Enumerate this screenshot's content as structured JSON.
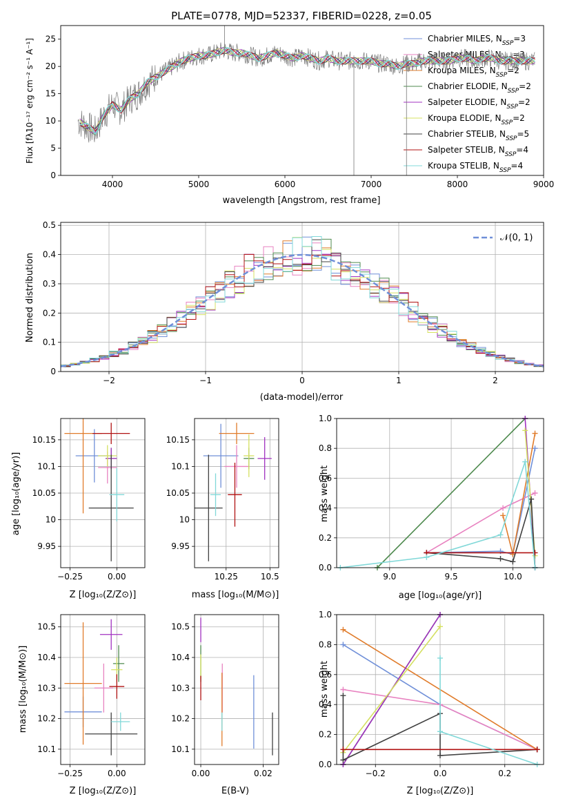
{
  "colors": [
    "#6f8fd8",
    "#e882c0",
    "#e07b2a",
    "#4e8a4e",
    "#a030c0",
    "#d4e060",
    "#404040",
    "#b01010",
    "#80d8d8"
  ],
  "chart_data": [
    {
      "id": "spectrum",
      "type": "line",
      "title": "PLATE=0778, MJD=52337, FIBERID=0228, z=0.05",
      "xlabel": "wavelength [Angstrom, rest frame]",
      "ylabel": "Flux [fλ10⁻¹⁷ erg cm⁻² s⁻¹ A⁻¹]",
      "xlim": [
        3400,
        9000
      ],
      "ylim": [
        0,
        27.5
      ],
      "xticks": [
        4000,
        5000,
        6000,
        7000,
        8000,
        9000
      ],
      "yticks": [
        0,
        5,
        10,
        15,
        20,
        25
      ],
      "grid": false,
      "legend_position": "top-right",
      "legend": [
        "Chabrier MILES, N_SSP=3",
        "Salpeter MILES, N_SSP=3",
        "Kroupa MILES, N_SSP=2",
        "Chabrier ELODIE, N_SSP=2",
        "Salpeter ELODIE, N_SSP=2",
        "Kroupa ELODIE, N_SSP=2",
        "Chabrier STELIB, N_SSP=5",
        "Salpeter STELIB, N_SSP=4",
        "Kroupa STELIB, N_SSP=4"
      ],
      "data_x": [
        3600,
        3700,
        3800,
        3900,
        4000,
        4100,
        4200,
        4300,
        4400,
        4500,
        4600,
        4700,
        4800,
        4900,
        5000,
        5100,
        5200,
        5300,
        5400,
        5500,
        5600,
        5700,
        5800,
        5900,
        6000,
        6100,
        6200,
        6300,
        6400,
        6500,
        6600,
        6700,
        6800,
        6900,
        7000,
        7100,
        7200,
        7300,
        7400,
        7500,
        7600,
        7700,
        7800,
        7900,
        8000,
        8100,
        8200,
        8300,
        8400,
        8500,
        8600,
        8700,
        8800,
        8900
      ],
      "data_y": [
        10,
        9,
        8,
        11,
        13,
        12,
        14,
        15,
        17,
        18,
        19,
        20,
        21,
        21.5,
        22,
        22,
        22.5,
        23,
        22.5,
        22.5,
        22,
        21.5,
        22,
        22.5,
        22,
        21.5,
        22,
        21.5,
        21,
        21.5,
        21,
        21,
        21,
        21,
        21,
        20.5,
        20.5,
        20,
        20.5,
        20.5,
        21,
        21,
        21,
        21,
        21.5,
        21.5,
        21,
        21.5,
        21.5,
        21,
        21,
        21,
        21,
        21
      ]
    },
    {
      "id": "residuals",
      "type": "bar",
      "xlabel": "(data-model)/error",
      "ylabel": "Normed distribution",
      "xlim": [
        -2.5,
        2.5
      ],
      "ylim": [
        0,
        0.51
      ],
      "xticks": [
        -2,
        -1,
        0,
        1,
        2
      ],
      "yticks": [
        0.0,
        0.1,
        0.2,
        0.3,
        0.4,
        0.5
      ],
      "grid": true,
      "legend_position": "top-right",
      "legend": [
        "𝒩(0, 1)"
      ]
    },
    {
      "id": "age-vs-Z",
      "type": "scatter",
      "xlabel": "Z [log₁₀(Z/Z⊙)]",
      "ylabel": "age  [log₁₀(age/yr)]",
      "xlim": [
        -0.3,
        0.15
      ],
      "ylim": [
        9.91,
        10.19
      ],
      "xticks": [
        -0.25,
        0.0
      ],
      "yticks": [
        9.95,
        10.0,
        10.05,
        10.1,
        10.15
      ],
      "grid": true,
      "points": [
        {
          "x": -0.12,
          "y": 10.12,
          "xerr": 0.1,
          "yerr": 0.05
        },
        {
          "x": -0.05,
          "y": 10.098,
          "xerr": 0.05,
          "yerr": 0.03
        },
        {
          "x": -0.18,
          "y": 10.162,
          "xerr": 0.1,
          "yerr": 0.15
        },
        {
          "x": -0.03,
          "y": 10.115,
          "xerr": 0.03,
          "yerr": 0.02
        },
        {
          "x": -0.03,
          "y": 10.115,
          "xerr": 0.03,
          "yerr": 0.02
        },
        {
          "x": -0.05,
          "y": 10.12,
          "xerr": 0.05,
          "yerr": 0.02
        },
        {
          "x": -0.03,
          "y": 10.022,
          "xerr": 0.12,
          "yerr": 0.1
        },
        {
          "x": -0.03,
          "y": 10.162,
          "xerr": 0.1,
          "yerr": 0.02
        },
        {
          "x": 0.0,
          "y": 10.047,
          "xerr": 0.04,
          "yerr": 0.05
        }
      ]
    },
    {
      "id": "age-vs-mass",
      "type": "scatter",
      "xlabel": "mass [log₁₀(M/M⊙)]",
      "ylabel": "",
      "xlim": [
        10.07,
        10.55
      ],
      "ylim": [
        9.91,
        10.19
      ],
      "xticks": [
        10.25,
        10.5
      ],
      "yticks": [
        9.95,
        10.0,
        10.05,
        10.1,
        10.15
      ],
      "grid": true,
      "points": [
        {
          "x": 10.22,
          "y": 10.12,
          "xerr": 0.1,
          "yerr": 0.06
        },
        {
          "x": 10.31,
          "y": 10.1,
          "xerr": 0.07,
          "yerr": 0.04
        },
        {
          "x": 10.31,
          "y": 10.162,
          "xerr": 0.1,
          "yerr": 0.02
        },
        {
          "x": 10.38,
          "y": 10.115,
          "xerr": 0.03,
          "yerr": 0.02
        },
        {
          "x": 10.47,
          "y": 10.115,
          "xerr": 0.04,
          "yerr": 0.04
        },
        {
          "x": 10.38,
          "y": 10.12,
          "xerr": 0.03,
          "yerr": 0.04
        },
        {
          "x": 10.15,
          "y": 10.022,
          "xerr": 0.08,
          "yerr": 0.1
        },
        {
          "x": 10.3,
          "y": 10.047,
          "xerr": 0.04,
          "yerr": 0.06
        },
        {
          "x": 10.19,
          "y": 10.047,
          "xerr": 0.03,
          "yerr": 0.04
        }
      ]
    },
    {
      "id": "weight-vs-age",
      "type": "line",
      "xlabel": "age  [log₁₀(age/yr)]",
      "ylabel": "mass weight",
      "xlim": [
        8.57,
        10.25
      ],
      "ylim": [
        0.0,
        1.0
      ],
      "xticks": [
        9.0,
        9.5,
        10.0
      ],
      "yticks": [
        0.0,
        0.2,
        0.4,
        0.6,
        0.8,
        1.0
      ],
      "grid": true,
      "series": [
        {
          "x": [
            9.3,
            9.9,
            10.0,
            10.18
          ],
          "y": [
            0.1,
            0.11,
            0.09,
            0.8
          ]
        },
        {
          "x": [
            9.3,
            9.92,
            10.18
          ],
          "y": [
            0.1,
            0.4,
            0.5
          ]
        },
        {
          "x": [
            9.92,
            10.0,
            10.18
          ],
          "y": [
            0.35,
            0.09,
            0.9
          ]
        },
        {
          "x": [
            8.9,
            10.1
          ],
          "y": [
            0.0,
            1.0
          ]
        },
        {
          "x": [
            10.1,
            10.18
          ],
          "y": [
            1.0,
            0.0
          ]
        },
        {
          "x": [
            10.1,
            10.18
          ],
          "y": [
            0.92,
            0.08
          ]
        },
        {
          "x": [
            9.3,
            9.9,
            10.0,
            10.15,
            10.18
          ],
          "y": [
            0.1,
            0.06,
            0.04,
            0.46,
            0.0
          ]
        },
        {
          "x": [
            9.3,
            10.18
          ],
          "y": [
            0.1,
            0.1
          ]
        },
        {
          "x": [
            8.6,
            9.3,
            9.9,
            10.1,
            10.18
          ],
          "y": [
            0.0,
            0.07,
            0.22,
            0.71,
            0.0
          ]
        }
      ]
    },
    {
      "id": "mass-vs-Z",
      "type": "scatter",
      "xlabel": "Z [log₁₀(Z/Z⊙)]",
      "ylabel": "mass [log₁₀(M/M⊙)]",
      "xlim": [
        -0.3,
        0.15
      ],
      "ylim": [
        10.05,
        10.54
      ],
      "xticks": [
        -0.25,
        0.0
      ],
      "yticks": [
        10.1,
        10.2,
        10.3,
        10.4,
        10.5
      ],
      "grid": true,
      "points": [
        {
          "x": -0.18,
          "y": 10.222,
          "xerr": 0.1,
          "yerr": 0.05
        },
        {
          "x": -0.07,
          "y": 10.3,
          "xerr": 0.05,
          "yerr": 0.08
        },
        {
          "x": -0.18,
          "y": 10.315,
          "xerr": 0.1,
          "yerr": 0.2
        },
        {
          "x": 0.01,
          "y": 10.38,
          "xerr": 0.03,
          "yerr": 0.06
        },
        {
          "x": -0.03,
          "y": 10.475,
          "xerr": 0.06,
          "yerr": 0.05
        },
        {
          "x": 0.0,
          "y": 10.36,
          "xerr": 0.03,
          "yerr": 0.04
        },
        {
          "x": -0.03,
          "y": 10.15,
          "xerr": 0.14,
          "yerr": 0.07
        },
        {
          "x": 0.0,
          "y": 10.305,
          "xerr": 0.04,
          "yerr": 0.04
        },
        {
          "x": 0.02,
          "y": 10.19,
          "xerr": 0.05,
          "yerr": 0.03
        }
      ]
    },
    {
      "id": "mass-vs-ebv",
      "type": "scatter",
      "xlabel": "E(B-V)",
      "ylabel": "",
      "xlim": [
        -0.002,
        0.025
      ],
      "ylim": [
        10.05,
        10.54
      ],
      "xticks": [
        0.0,
        0.02
      ],
      "yticks": [
        10.1,
        10.2,
        10.3,
        10.4,
        10.5
      ],
      "grid": true,
      "points": [
        {
          "x": 0.017,
          "y": 10.222,
          "xerr": 0,
          "yerr": 0.12
        },
        {
          "x": 0.0069,
          "y": 10.3,
          "xerr": 0,
          "yerr": 0.08
        },
        {
          "x": 0.0068,
          "y": 10.23,
          "xerr": 0,
          "yerr": 0.12
        },
        {
          "x": 0.0,
          "y": 10.38,
          "xerr": 0,
          "yerr": 0.06
        },
        {
          "x": 0.0,
          "y": 10.49,
          "xerr": 0,
          "yerr": 0.04
        },
        {
          "x": 0.0,
          "y": 10.37,
          "xerr": 0,
          "yerr": 0.04
        },
        {
          "x": 0.023,
          "y": 10.15,
          "xerr": 0,
          "yerr": 0.07
        },
        {
          "x": 0.0,
          "y": 10.3,
          "xerr": 0,
          "yerr": 0.04
        },
        {
          "x": 0.0068,
          "y": 10.19,
          "xerr": 0,
          "yerr": 0.03
        }
      ]
    },
    {
      "id": "weight-vs-Z",
      "type": "line",
      "xlabel": "Z [log₁₀(Z/Z⊙)]",
      "ylabel": "mass weight",
      "xlim": [
        -0.32,
        0.32
      ],
      "ylim": [
        0.0,
        1.0
      ],
      "xticks": [
        -0.2,
        0.0,
        0.2
      ],
      "yticks": [
        0.0,
        0.2,
        0.4,
        0.6,
        0.8,
        1.0
      ],
      "grid": true,
      "series": [
        {
          "x": [
            -0.3,
            0.0,
            0.3
          ],
          "y": [
            0.8,
            0.4,
            0.1
          ]
        },
        {
          "x": [
            -0.3,
            0.0,
            0.3
          ],
          "y": [
            0.5,
            0.4,
            0.1
          ]
        },
        {
          "x": [
            -0.3,
            0.3
          ],
          "y": [
            0.9,
            0.1
          ]
        },
        {
          "x": [
            -0.3,
            0.0
          ],
          "y": [
            0.0,
            1.0
          ]
        },
        {
          "x": [
            -0.3,
            0.0
          ],
          "y": [
            0.0,
            1.0
          ]
        },
        {
          "x": [
            -0.3,
            0.0
          ],
          "y": [
            0.08,
            0.92
          ]
        },
        {
          "x": [
            -0.3,
            -0.3,
            0.0,
            0.0,
            0.3
          ],
          "y": [
            0.46,
            0.03,
            0.34,
            0.06,
            0.1
          ]
        },
        {
          "x": [
            -0.3,
            0.3
          ],
          "y": [
            0.1,
            0.1
          ]
        },
        {
          "x": [
            0.0,
            0.0,
            0.3
          ],
          "y": [
            0.71,
            0.22,
            0.0
          ]
        }
      ]
    }
  ]
}
